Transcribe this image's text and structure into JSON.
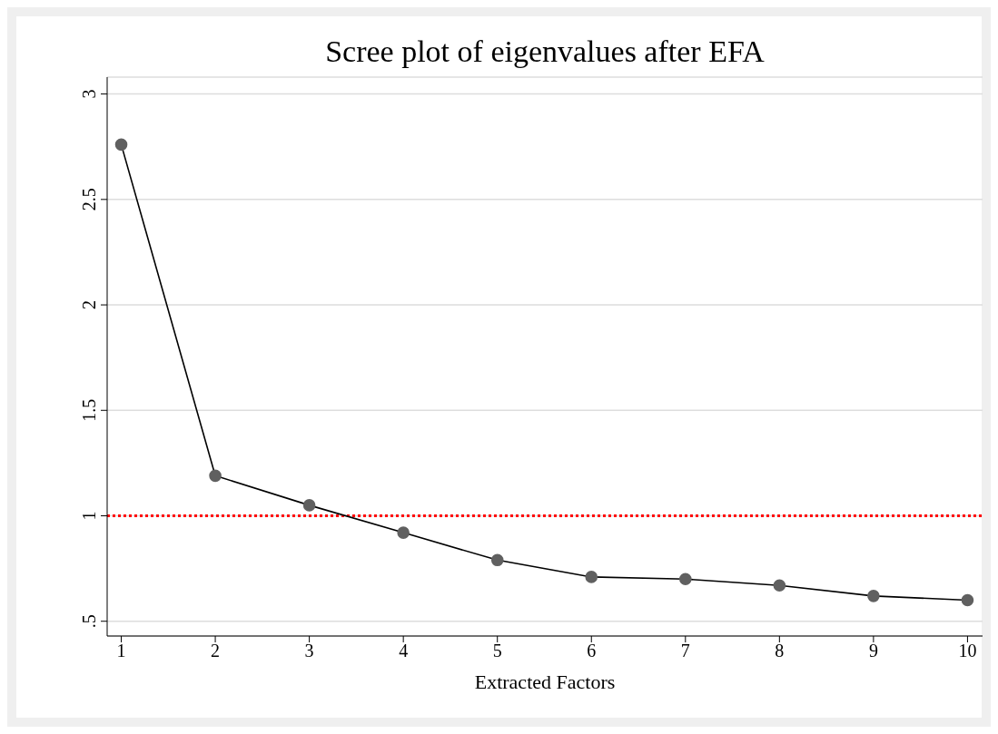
{
  "chart_data": {
    "type": "line",
    "title": "Scree plot of eigenvalues after EFA",
    "xlabel": "Extracted Factors",
    "x": [
      1,
      2,
      3,
      4,
      5,
      6,
      7,
      8,
      9,
      10
    ],
    "series": [
      {
        "color": "#606060",
        "values": [
          2.76,
          1.19,
          1.05,
          0.92,
          0.79,
          0.71,
          0.7,
          0.67,
          0.62,
          0.6
        ]
      }
    ],
    "xlim": [
      0.85,
      10.16
    ],
    "xticks": [
      1,
      2,
      3,
      4,
      5,
      6,
      7,
      8,
      9,
      10
    ],
    "ylim": [
      0.43,
      3.08
    ],
    "yticks": [
      {
        "value": 0.5,
        "label": ".5"
      },
      1,
      1.5,
      2,
      2.5,
      3
    ],
    "grid": "y",
    "marker": "circle",
    "line_style": "solid",
    "legend": false,
    "ref_lines": [
      {
        "axis": "y",
        "value": 1,
        "color": "#ff0000",
        "line_style": "dotted"
      }
    ]
  }
}
